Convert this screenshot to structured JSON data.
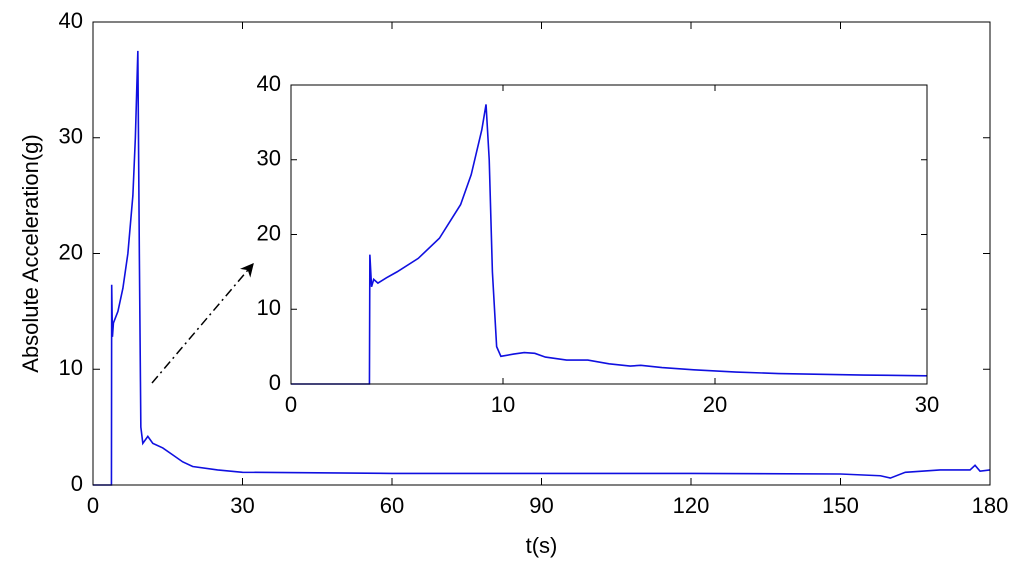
{
  "chart_data": [
    {
      "type": "line",
      "x_label": "t(s)",
      "y_label": "Absolute Acceleration(g)",
      "color": "#1010e0",
      "x": [
        0,
        3.7,
        3.75,
        3.9,
        4.1,
        5,
        6,
        7,
        8,
        8.5,
        9,
        9.3,
        9.6,
        10,
        11,
        12,
        14,
        16,
        18,
        20,
        25,
        30,
        60,
        90,
        120,
        150,
        158,
        160,
        163,
        170,
        176,
        177,
        178,
        180
      ],
      "values": [
        0,
        0,
        17.3,
        12.8,
        14,
        15,
        17,
        20,
        25,
        30,
        37.5,
        20,
        5,
        3.6,
        4.2,
        3.6,
        3.2,
        2.6,
        2,
        1.6,
        1.3,
        1.1,
        1.0,
        1.0,
        1.0,
        0.95,
        0.8,
        0.6,
        1.1,
        1.3,
        1.3,
        1.7,
        1.2,
        1.3
      ],
      "xlim": [
        0,
        180
      ],
      "ylim": [
        0,
        40
      ],
      "xticks": [
        0,
        30,
        60,
        90,
        120,
        150,
        180
      ],
      "yticks": [
        0,
        10,
        20,
        30,
        40
      ]
    },
    {
      "type": "line",
      "color": "#1010e0",
      "x": [
        0,
        3.7,
        3.72,
        3.8,
        3.9,
        4.1,
        4.5,
        5,
        6,
        7,
        8,
        8.5,
        9,
        9.2,
        9.35,
        9.5,
        9.7,
        9.9,
        10.5,
        11,
        11.5,
        12,
        13,
        14,
        15,
        16,
        16.5,
        17.5,
        19,
        21,
        23,
        25,
        27,
        30
      ],
      "values": [
        0,
        0,
        17.3,
        13,
        14,
        13.5,
        14.2,
        15,
        16.8,
        19.5,
        24,
        28,
        34,
        37.4,
        30,
        15,
        5,
        3.7,
        4,
        4.2,
        4.1,
        3.6,
        3.2,
        3.2,
        2.7,
        2.4,
        2.5,
        2.2,
        1.9,
        1.6,
        1.4,
        1.3,
        1.2,
        1.1
      ],
      "xlim": [
        0,
        30
      ],
      "ylim": [
        0,
        40
      ],
      "xticks": [
        0,
        10,
        20,
        30
      ],
      "yticks": [
        0,
        10,
        20,
        30,
        40
      ]
    }
  ]
}
